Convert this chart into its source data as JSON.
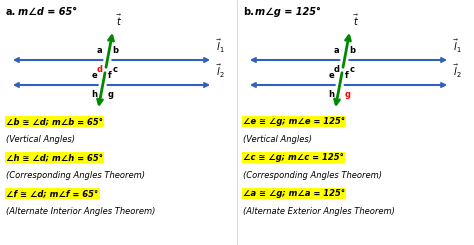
{
  "background": "#ffffff",
  "title_a": "m∠d = 65°",
  "title_b": "m∠g = 125°",
  "label_a": "a.",
  "label_b": "b.",
  "highlight_color": "#ffff00",
  "blue": "#3060c0",
  "green": "#008800",
  "red": "#ff0000",
  "black": "#000000",
  "panel_a": {
    "labels_line1": [
      {
        "text": "a",
        "pos": "tl",
        "color": "#000000"
      },
      {
        "text": "b",
        "pos": "tr",
        "color": "#000000"
      },
      {
        "text": "d",
        "pos": "bl",
        "color": "#ff0000"
      },
      {
        "text": "c",
        "pos": "br",
        "color": "#000000"
      }
    ],
    "labels_line2": [
      {
        "text": "e",
        "pos": "tl",
        "color": "#000000"
      },
      {
        "text": "f",
        "pos": "tr",
        "color": "#000000"
      },
      {
        "text": "h",
        "pos": "bl",
        "color": "#000000"
      },
      {
        "text": "g",
        "pos": "br",
        "color": "#000000"
      }
    ],
    "text_lines": [
      {
        "text": "∠b ≅ ∠d; m∠b = 65°",
        "highlight": true
      },
      {
        "text": "(Vertical Angles)",
        "highlight": false
      },
      {
        "text": "∠h ≅ ∠d; m∠h = 65°",
        "highlight": true
      },
      {
        "text": "(Corresponding Angles Theorem)",
        "highlight": false
      },
      {
        "text": "∠f ≅ ∠d; m∠f = 65°",
        "highlight": true
      },
      {
        "text": "(Alternate Interior Angles Theorem)",
        "highlight": false
      }
    ]
  },
  "panel_b": {
    "labels_line1": [
      {
        "text": "a",
        "pos": "tl",
        "color": "#000000"
      },
      {
        "text": "b",
        "pos": "tr",
        "color": "#000000"
      },
      {
        "text": "d",
        "pos": "bl",
        "color": "#000000"
      },
      {
        "text": "c",
        "pos": "br",
        "color": "#000000"
      }
    ],
    "labels_line2": [
      {
        "text": "e",
        "pos": "tl",
        "color": "#000000"
      },
      {
        "text": "f",
        "pos": "tr",
        "color": "#000000"
      },
      {
        "text": "h",
        "pos": "bl",
        "color": "#000000"
      },
      {
        "text": "g",
        "pos": "br",
        "color": "#ff0000"
      }
    ],
    "text_lines": [
      {
        "text": "∠e ≅ ∠g; m∠e = 125°",
        "highlight": true
      },
      {
        "text": "(Vertical Angles)",
        "highlight": false
      },
      {
        "text": "∠c ≅ ∠g; m∠c = 125°",
        "highlight": true
      },
      {
        "text": "(Corresponding Angles Theorem)",
        "highlight": false
      },
      {
        "text": "∠a ≅ ∠g; m∠a = 125°",
        "highlight": true
      },
      {
        "text": "(Alternate Exterior Angles Theorem)",
        "highlight": false
      }
    ]
  }
}
